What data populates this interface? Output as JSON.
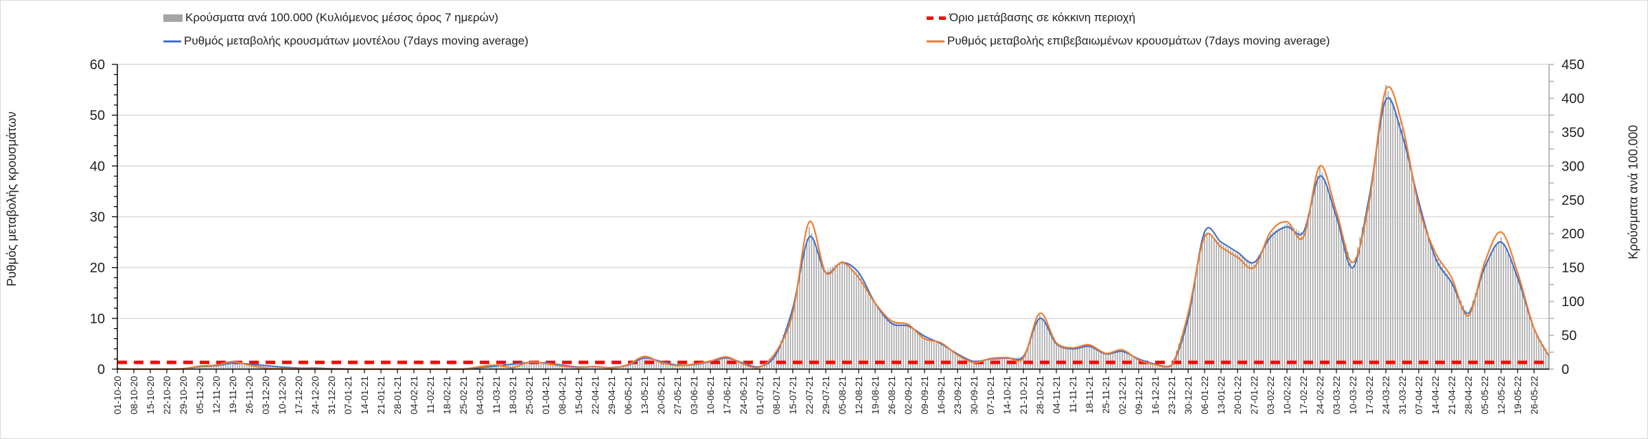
{
  "legend": {
    "cases_bar": "Κρούσματα ανά 100.000 (Κυλιόμενος μέσος όρος 7 ημερών)",
    "red_threshold": "Όριο μετάβασης σε κόκκινη περιοχή",
    "model_rate": "Ρυθμός μεταβολής κρουσμάτων μοντέλου (7days moving average)",
    "confirmed_rate": "Ρυθμός μεταβολής επιβεβαιωμένων κρουσμάτων (7days moving average)"
  },
  "colors": {
    "bars": "#a5a5a5",
    "model_rate": "#4472c4",
    "confirmed_rate": "#ed7d31",
    "threshold": "#ff0000",
    "grid": "#d9d9d9"
  },
  "chart_data": {
    "type": "bar+line",
    "ylabel": "Ρυθμός μεταβολής κρουσμάτων",
    "y2label": "Κρούσματα ανά 100.000",
    "ylim": [
      0,
      60
    ],
    "y2lim": [
      0,
      450
    ],
    "yticks": [
      "0",
      "10",
      "20",
      "30",
      "40",
      "50",
      "60"
    ],
    "y2ticks": [
      "0",
      "50",
      "100",
      "150",
      "200",
      "250",
      "300",
      "350",
      "400",
      "450"
    ],
    "grid": true,
    "legend_position": "top",
    "x_tick_labels": [
      "01-10-20",
      "08-10-20",
      "15-10-20",
      "22-10-20",
      "29-10-20",
      "05-11-20",
      "12-11-20",
      "19-11-20",
      "26-11-20",
      "03-12-20",
      "10-12-20",
      "17-12-20",
      "24-12-20",
      "31-12-20",
      "07-01-21",
      "14-01-21",
      "21-01-21",
      "28-01-21",
      "04-02-21",
      "11-02-21",
      "18-02-21",
      "25-02-21",
      "04-03-21",
      "11-03-21",
      "18-03-21",
      "25-03-21",
      "01-04-21",
      "08-04-21",
      "15-04-21",
      "22-04-21",
      "29-04-21",
      "06-05-21",
      "13-05-21",
      "20-05-21",
      "27-05-21",
      "03-06-21",
      "10-06-21",
      "17-06-21",
      "24-06-21",
      "01-07-21",
      "08-07-21",
      "15-07-21",
      "22-07-21",
      "29-07-21",
      "05-08-21",
      "12-08-21",
      "19-08-21",
      "26-08-21",
      "02-09-21",
      "09-09-21",
      "16-09-21",
      "23-09-21",
      "30-09-21",
      "07-10-21",
      "14-10-21",
      "21-10-21",
      "28-10-21",
      "04-11-21",
      "11-11-21",
      "18-11-21",
      "25-11-21",
      "02-12-21",
      "09-12-21",
      "16-12-21",
      "23-12-21",
      "30-12-21",
      "06-01-22",
      "13-01-22",
      "20-01-22",
      "27-01-22",
      "03-02-22",
      "10-02-22",
      "17-02-22",
      "24-02-22",
      "03-03-22",
      "10-03-22",
      "17-03-22",
      "24-03-22",
      "31-03-22",
      "07-04-22",
      "14-04-22",
      "21-04-22",
      "28-04-22",
      "05-05-22",
      "12-05-22",
      "19-05-22",
      "26-05-22"
    ],
    "threshold_value": 1.33,
    "series": [
      {
        "name": "model_rate",
        "axis": "left",
        "type": "line",
        "values": [
          0.1,
          0,
          0,
          0,
          0.1,
          0.5,
          0.7,
          1.2,
          1.0,
          0.7,
          0.4,
          0.2,
          0.2,
          0.1,
          0.05,
          0,
          0,
          0,
          0,
          0,
          0,
          0,
          0.3,
          0.6,
          1.0,
          1.3,
          1.2,
          0.8,
          0.4,
          0.5,
          0.3,
          0.8,
          2.2,
          1.5,
          0.8,
          0.9,
          1.5,
          2.2,
          1.2,
          0.5,
          3,
          12,
          26,
          19,
          21,
          19,
          13,
          9,
          8.5,
          6.5,
          5,
          3,
          1.5,
          2,
          2.2,
          2.5,
          10,
          5,
          4,
          4.5,
          3,
          3.5,
          2,
          1,
          0.8,
          10,
          27,
          25,
          23,
          21,
          26,
          28,
          27,
          38,
          30,
          20,
          34,
          53,
          46,
          33,
          22,
          17,
          11,
          20,
          25,
          18,
          8,
          2.5
        ]
      },
      {
        "name": "confirmed_rate",
        "axis": "left",
        "type": "line",
        "values": [
          0.1,
          0,
          0,
          0,
          0.1,
          0.6,
          0.8,
          1.5,
          0.8,
          0.2,
          0.1,
          0,
          0,
          0,
          0,
          0,
          0,
          0,
          0,
          0,
          0,
          0,
          0.5,
          0.8,
          0.3,
          1.4,
          1.1,
          0.6,
          0.3,
          0.5,
          0.2,
          0.9,
          2.5,
          1.3,
          0.7,
          1.0,
          1.6,
          2.4,
          1.0,
          0.4,
          3.5,
          11,
          29,
          19,
          21,
          18,
          13,
          9.5,
          8.8,
          6,
          5.2,
          2.8,
          1.3,
          2.1,
          2.3,
          2.2,
          11,
          5.2,
          4.2,
          4.8,
          3.1,
          3.8,
          1.8,
          0.9,
          0.7,
          11,
          26,
          24,
          22,
          20,
          27,
          29,
          26,
          40,
          31,
          21,
          33,
          55,
          48,
          32,
          23,
          18,
          10.5,
          21,
          27,
          19,
          8,
          2.5
        ]
      },
      {
        "name": "cases_per_100k",
        "axis": "right",
        "type": "bar",
        "values": [
          1,
          0,
          0,
          0,
          1,
          5,
          6,
          11,
          8,
          4,
          2,
          1,
          1,
          1,
          0,
          0,
          0,
          0,
          0,
          0,
          0,
          0,
          3,
          5,
          6,
          10,
          9,
          5,
          3,
          4,
          2,
          6,
          17,
          11,
          6,
          7,
          12,
          17,
          8,
          3,
          25,
          85,
          210,
          145,
          160,
          140,
          98,
          70,
          64,
          47,
          38,
          22,
          12,
          16,
          17,
          18,
          80,
          38,
          31,
          35,
          23,
          28,
          14,
          7,
          6,
          80,
          205,
          185,
          170,
          155,
          200,
          215,
          200,
          300,
          230,
          150,
          255,
          420,
          355,
          245,
          168,
          130,
          80,
          155,
          195,
          135,
          60,
          18
        ]
      }
    ]
  }
}
